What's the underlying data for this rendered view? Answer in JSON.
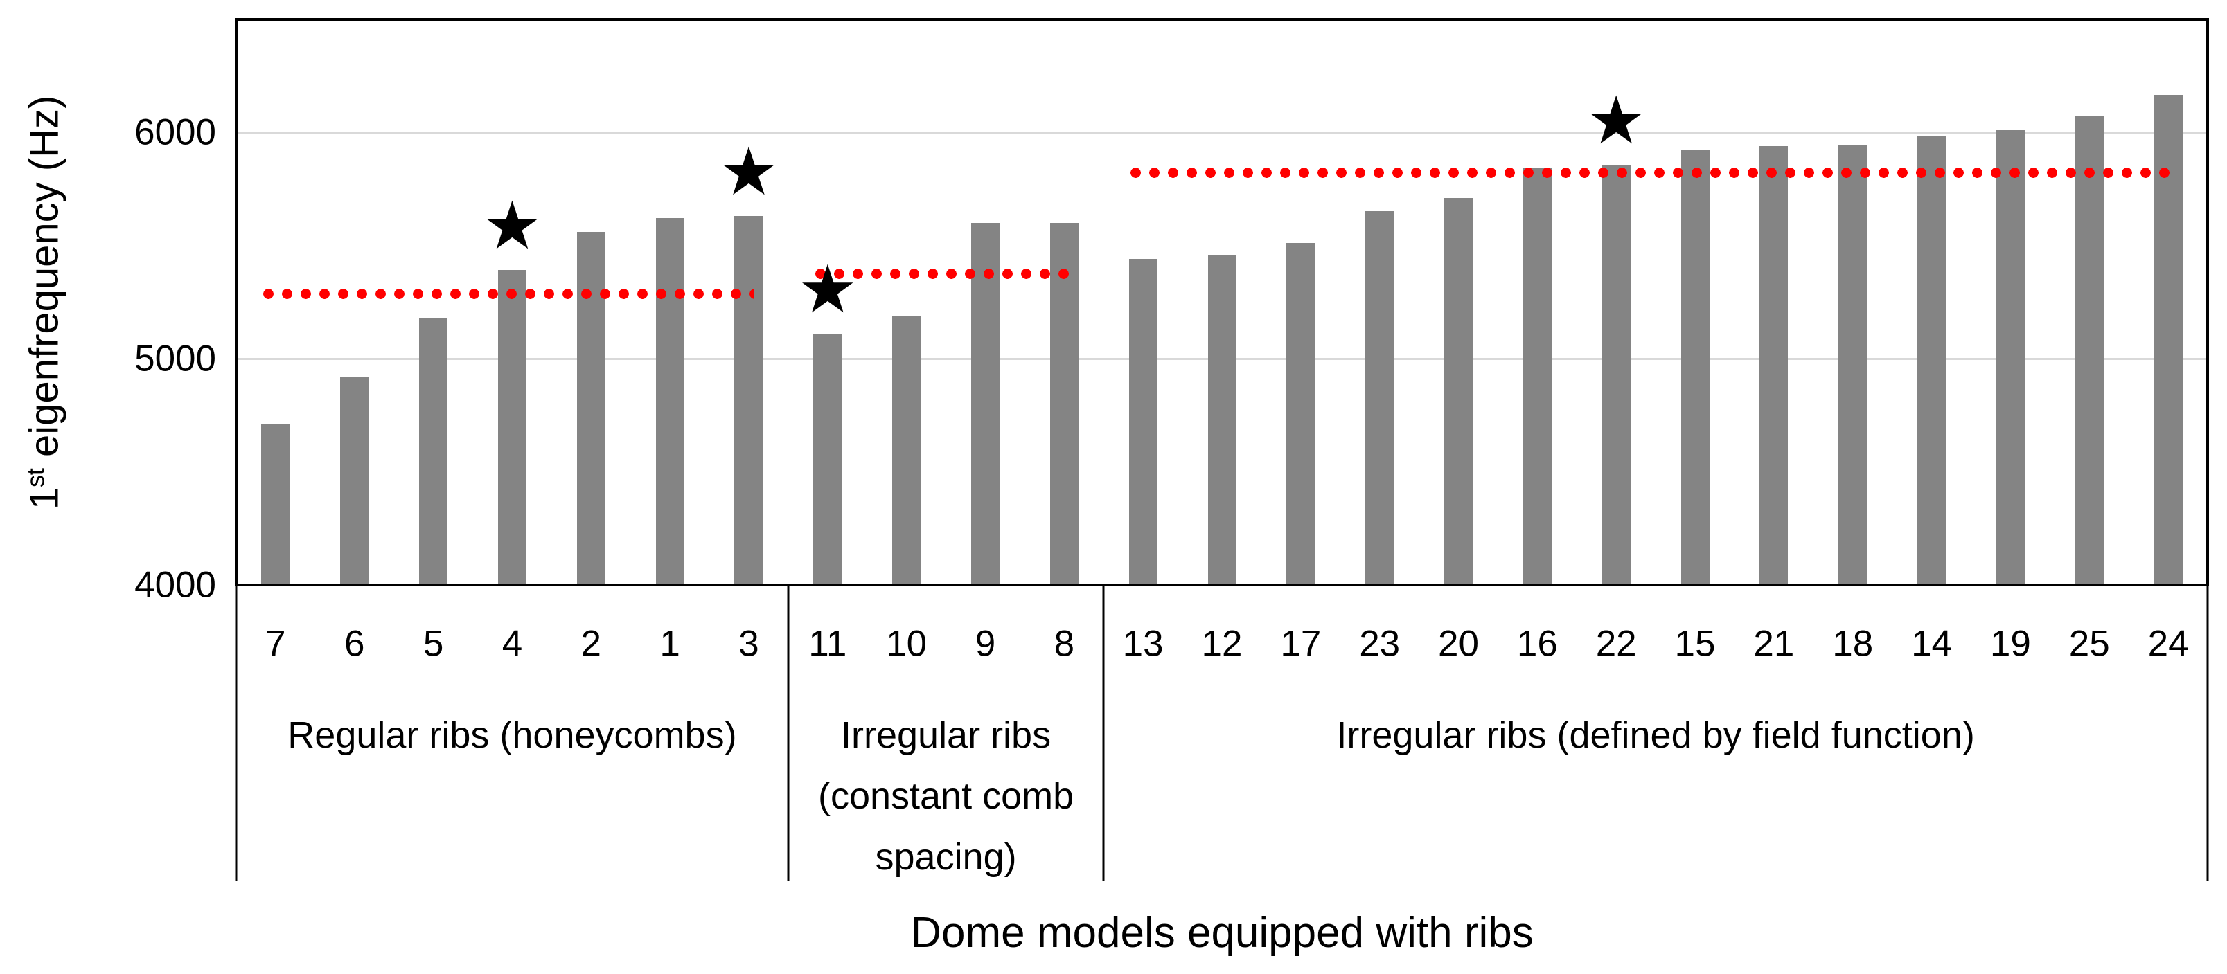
{
  "chart_data": {
    "type": "bar",
    "title": "",
    "xlabel": "Dome models equipped with ribs",
    "ylabel": "1st eigenfrequency (Hz)",
    "ylabel_parts": {
      "base": "1",
      "sup": "st",
      "rest": " eigenfrequency (Hz)"
    },
    "y_axis": {
      "min": 4000,
      "max": 6490,
      "ticks": [
        6000,
        5000,
        4000
      ],
      "tick_labels": [
        "6000",
        "5000",
        "4000"
      ],
      "gridlines": [
        6000,
        5000
      ],
      "grid_on": true
    },
    "legend": "none",
    "colors": {
      "bar": "#848484",
      "mean_line": "#FF0000",
      "gridline": "#D9D9D9",
      "axis": "#000000",
      "star": "#000000"
    },
    "star_symbol": "★",
    "starred_models": [
      "4",
      "3",
      "11",
      "22"
    ],
    "groups": [
      {
        "label_lines": [
          "Regular ribs (honeycombs)"
        ],
        "models": [
          "7",
          "6",
          "5",
          "4",
          "2",
          "1",
          "3"
        ],
        "values": [
          4710,
          4920,
          5180,
          5390,
          5560,
          5620,
          5630
        ],
        "mean_line_value": 5287
      },
      {
        "label_lines": [
          "Irregular ribs",
          "(constant comb",
          "spacing)"
        ],
        "models": [
          "11",
          "10",
          "9",
          "8"
        ],
        "values": [
          5110,
          5190,
          5600,
          5600
        ],
        "mean_line_value": 5375
      },
      {
        "label_lines": [
          "Irregular ribs (defined by field function)"
        ],
        "models": [
          "13",
          "12",
          "17",
          "23",
          "20",
          "16",
          "22",
          "15",
          "21",
          "18",
          "14",
          "19",
          "25",
          "24"
        ],
        "values": [
          5440,
          5460,
          5510,
          5650,
          5710,
          5845,
          5855,
          5925,
          5940,
          5945,
          5985,
          6010,
          6070,
          6165
        ],
        "mean_line_value": 5822
      }
    ]
  }
}
